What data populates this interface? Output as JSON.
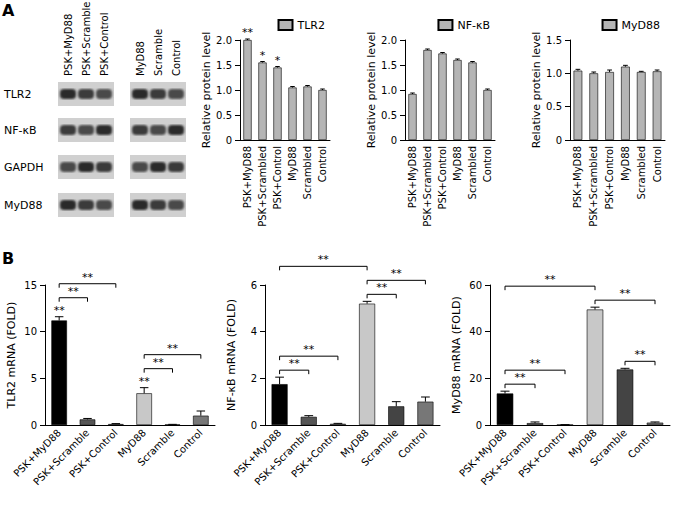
{
  "panel_labels": [
    "A",
    "B"
  ],
  "blot": {
    "lanes": [
      "PSK+MyD88",
      "PSK+Scramble",
      "PSK+Control",
      "MyD88",
      "Scramble",
      "Control"
    ],
    "rows": [
      "TLR2",
      "NF-κB",
      "GAPDH",
      "MyD88"
    ]
  },
  "chart_data": [
    {
      "type": "bar",
      "ylabel": "Relative protein level",
      "categories": [
        "PSK+MyD88",
        "PSK+Scrambled",
        "PSK+Control",
        "MyD88",
        "Scrambled",
        "Control"
      ],
      "series": [
        {
          "name": "TLR2",
          "color": "#b5b5b5",
          "values": [
            2.0,
            1.55,
            1.45,
            1.05,
            1.07,
            1.0
          ],
          "errors": [
            0.02,
            0.02,
            0.02,
            0.02,
            0.02,
            0.02
          ],
          "significance": [
            "**",
            "*",
            "*",
            null,
            null,
            null
          ]
        }
      ],
      "ylim": [
        0,
        2
      ],
      "yticks": [
        0,
        0.5,
        {
          "value": 1,
          "label": "1.0"
        },
        1.5,
        {
          "value": 2,
          "label": "2.0"
        }
      ],
      "legend": "top-right",
      "grid": false
    },
    {
      "type": "bar",
      "ylabel": "Relative protein level",
      "categories": [
        "PSK+MyD88",
        "PSK+Scrambled",
        "PSK+Control",
        "MyD88",
        "Scrambled",
        "Control"
      ],
      "series": [
        {
          "name": "NF-κB",
          "color": "#b5b5b5",
          "values": [
            0.92,
            1.8,
            1.73,
            1.6,
            1.55,
            1.0
          ],
          "errors": [
            0.02,
            0.02,
            0.02,
            0.02,
            0.02,
            0.02
          ]
        }
      ],
      "ylim": [
        0,
        2
      ],
      "yticks": [
        0,
        0.5,
        {
          "value": 1,
          "label": "1.0"
        },
        1.5,
        {
          "value": 2,
          "label": "2.0"
        }
      ],
      "legend": "top-right",
      "grid": false
    },
    {
      "type": "bar",
      "ylabel": "Relative protein level",
      "categories": [
        "PSK+MyD88",
        "PSK+Scrambled",
        "PSK+Control",
        "MyD88",
        "Scrambled",
        "Control"
      ],
      "series": [
        {
          "name": "MyD88",
          "color": "#b5b5b5",
          "values": [
            1.04,
            1.0,
            1.02,
            1.1,
            1.02,
            1.03
          ],
          "errors": [
            0.02,
            0.02,
            0.03,
            0.02,
            0.01,
            0.02
          ]
        }
      ],
      "ylim": [
        0,
        1.5
      ],
      "yticks": [
        0,
        0.5,
        {
          "value": 1,
          "label": "1.0"
        },
        1.5
      ],
      "legend": "top-right",
      "grid": false
    },
    {
      "type": "bar",
      "ylabel": "TLR2 mRNA (FOLD)",
      "categories": [
        "PSK+MyD88",
        "PSK+Scramble",
        "PSK+Control",
        "MyD88",
        "Scramble",
        "Control"
      ],
      "values": [
        11.2,
        0.6,
        0.1,
        3.4,
        0.05,
        1.0
      ],
      "errors": [
        0.4,
        0.1,
        0.05,
        0.6,
        0.02,
        0.5
      ],
      "colors": [
        "#000000",
        "#555555",
        "#888888",
        "#c8c8c8",
        "#444444",
        "#777777"
      ],
      "significance": [
        "**",
        null,
        null,
        "**",
        null,
        null
      ],
      "brackets": [
        {
          "from": "PSK+MyD88",
          "to": "PSK+Scramble",
          "label": "**"
        },
        {
          "from": "PSK+MyD88",
          "to": "PSK+Control",
          "label": "**"
        },
        {
          "from": "MyD88",
          "to": "Scramble",
          "label": "**"
        },
        {
          "from": "MyD88",
          "to": "Control",
          "label": "**"
        }
      ],
      "ylim": [
        0,
        15
      ],
      "yticks": [
        0,
        5,
        10,
        15
      ],
      "grid": false
    },
    {
      "type": "bar",
      "ylabel": "NF-κB mRNA (FOLD)",
      "categories": [
        "PSK+MyD88",
        "PSK+Scramble",
        "PSK+Control",
        "MyD88",
        "Scramble",
        "Control"
      ],
      "values": [
        1.75,
        0.35,
        0.05,
        5.2,
        0.8,
        1.0
      ],
      "errors": [
        0.3,
        0.05,
        0.02,
        0.1,
        0.2,
        0.2
      ],
      "colors": [
        "#000000",
        "#555555",
        "#888888",
        "#c8c8c8",
        "#444444",
        "#777777"
      ],
      "brackets": [
        {
          "from": "PSK+MyD88",
          "to": "PSK+Scramble",
          "label": "**"
        },
        {
          "from": "PSK+MyD88",
          "to": "PSK+Control",
          "label": "**"
        },
        {
          "from": "MyD88",
          "to": "Scramble",
          "label": "**"
        },
        {
          "from": "MyD88",
          "to": "Control",
          "label": "**"
        },
        {
          "from": "PSK+MyD88",
          "to": "MyD88",
          "label": "**"
        }
      ],
      "ylim": [
        0,
        6
      ],
      "yticks": [
        0,
        2,
        4,
        6
      ],
      "grid": false
    },
    {
      "type": "bar",
      "ylabel": "MyD88 mRNA (FOLD)",
      "categories": [
        "PSK+MyD88",
        "PSK+Scramble",
        "PSK+Control",
        "MyD88",
        "Scramble",
        "Control"
      ],
      "values": [
        13.5,
        0.8,
        0.1,
        49.5,
        23.8,
        1.0
      ],
      "errors": [
        1.0,
        0.5,
        0.05,
        1.0,
        0.5,
        0.3
      ],
      "colors": [
        "#000000",
        "#555555",
        "#888888",
        "#c8c8c8",
        "#444444",
        "#777777"
      ],
      "brackets": [
        {
          "from": "PSK+MyD88",
          "to": "PSK+Scramble",
          "label": "**"
        },
        {
          "from": "PSK+MyD88",
          "to": "PSK+Control",
          "label": "**"
        },
        {
          "from": "Scramble",
          "to": "Control",
          "label": "**"
        },
        {
          "from": "MyD88",
          "to": "Control",
          "label": "**"
        },
        {
          "from": "PSK+MyD88",
          "to": "MyD88",
          "label": "**"
        }
      ],
      "ylim": [
        0,
        60
      ],
      "yticks": [
        0,
        20,
        40,
        60
      ],
      "grid": false
    }
  ]
}
